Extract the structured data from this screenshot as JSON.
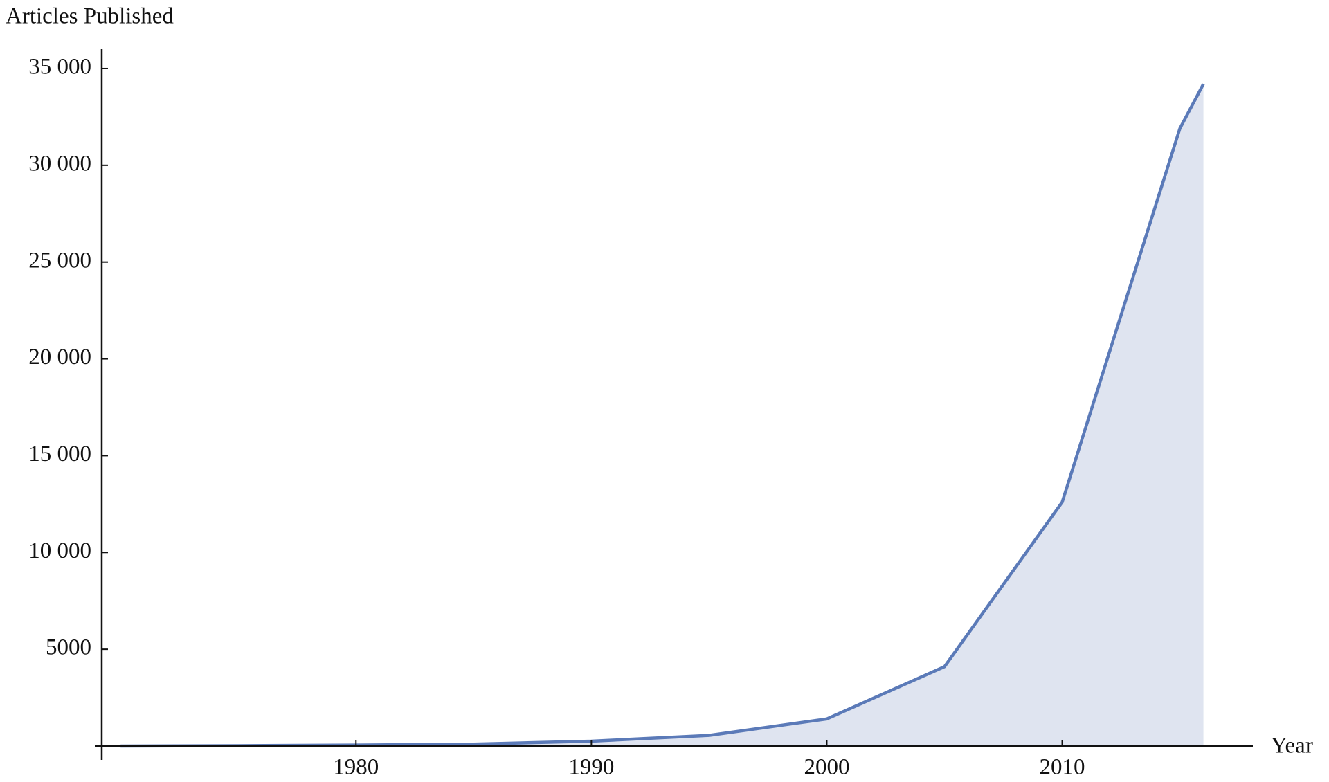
{
  "chart_data": {
    "type": "area",
    "y_label": "Articles Published",
    "x_label": "Year",
    "x": [
      1970,
      1975,
      1980,
      1985,
      1990,
      1995,
      2000,
      2005,
      2010,
      2015,
      2016
    ],
    "series": [
      {
        "name": "Articles Published",
        "color": "#5b7ab8",
        "fill": "#dfe4f0",
        "values": [
          0,
          20,
          50,
          100,
          250,
          550,
          1400,
          4100,
          12600,
          31900,
          34200
        ]
      }
    ],
    "xlim": [
      1969.2,
      2018.1
    ],
    "xticks": [
      1980,
      1990,
      2000,
      2010
    ],
    "ylim": [
      0,
      36000
    ],
    "yticks": [
      {
        "value": 5000,
        "label": "5000"
      },
      {
        "value": 10000,
        "label": "10 000"
      },
      {
        "value": 15000,
        "label": "15 000"
      },
      {
        "value": 20000,
        "label": "20 000"
      },
      {
        "value": 25000,
        "label": "25 000"
      },
      {
        "value": 30000,
        "label": "30 000"
      },
      {
        "value": 35000,
        "label": "35 000"
      }
    ]
  }
}
